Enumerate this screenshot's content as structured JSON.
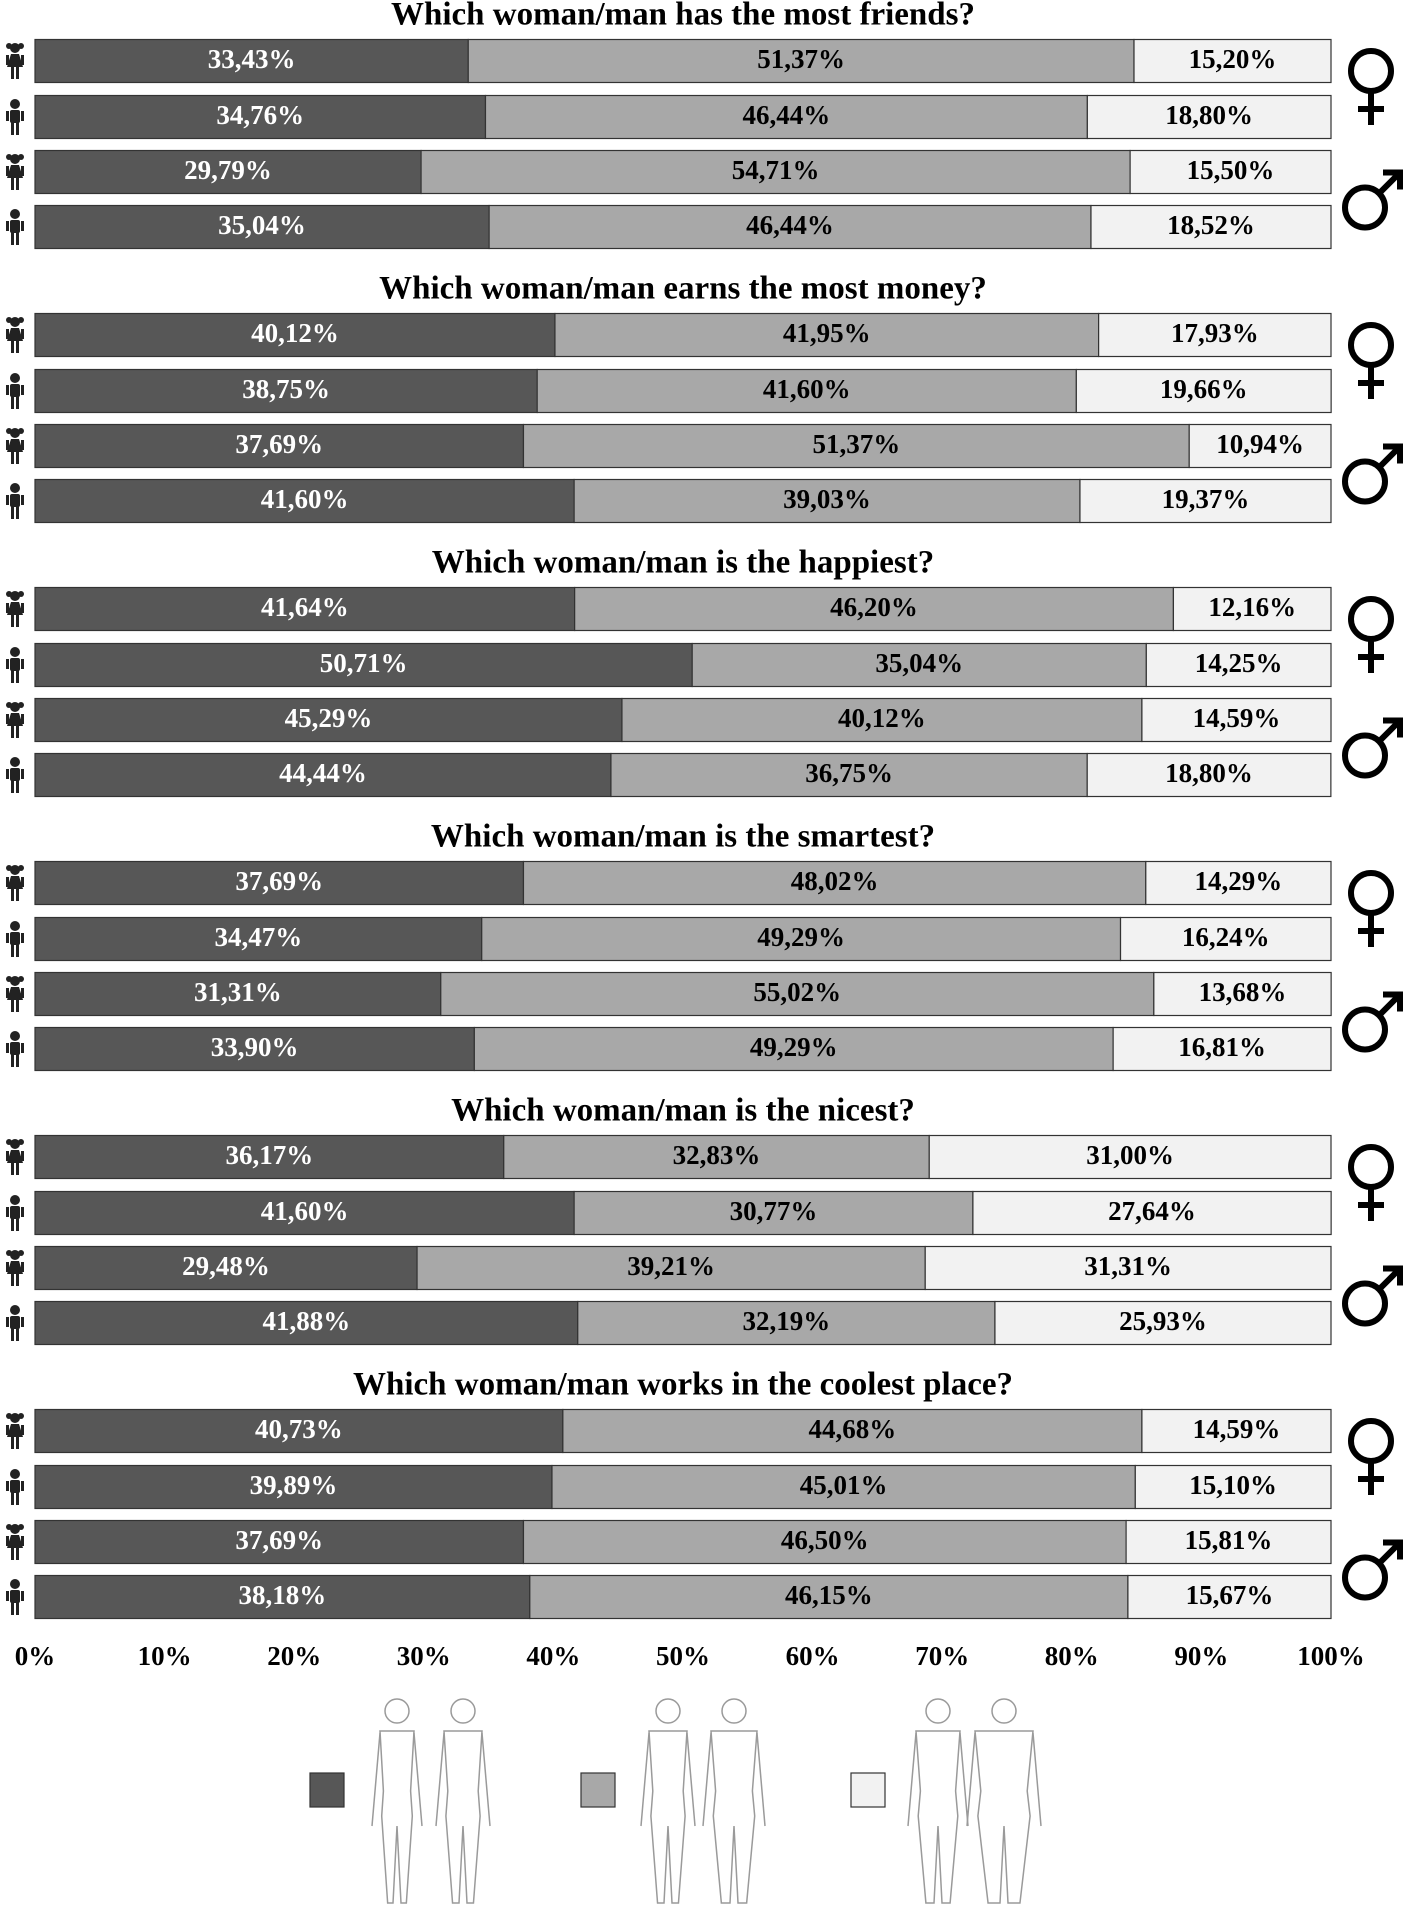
{
  "chart_data": {
    "type": "bar",
    "orientation": "horizontal",
    "stacked": true,
    "xlim": [
      0,
      100
    ],
    "xticks": [
      {
        "value": 0,
        "label": "0%"
      },
      {
        "value": 10,
        "label": "10%"
      },
      {
        "value": 20,
        "label": "20%"
      },
      {
        "value": 30,
        "label": "30%"
      },
      {
        "value": 40,
        "label": "40%"
      },
      {
        "value": 50,
        "label": "50%"
      },
      {
        "value": 60,
        "label": "60%"
      },
      {
        "value": 70,
        "label": "70%"
      },
      {
        "value": 80,
        "label": "80%"
      },
      {
        "value": 90,
        "label": "90%"
      },
      {
        "value": 100,
        "label": "100%"
      }
    ],
    "colors": [
      "#575757",
      "#a8a8a8",
      "#f2f2f2"
    ],
    "panels": [
      {
        "title": "Which woman/man has the most friends?",
        "categories": [
          null,
          null,
          null,
          null
        ],
        "series": [
          {
            "values": [
              33.43,
              34.76,
              29.79,
              35.04
            ],
            "value_labels": [
              "33,43%",
              "34,76%",
              "29,79%",
              "35,04%"
            ]
          },
          {
            "values": [
              51.37,
              46.44,
              54.71,
              46.44
            ],
            "value_labels": [
              "51,37%",
              "46,44%",
              "54,71%",
              "46,44%"
            ]
          },
          {
            "values": [
              15.2,
              18.8,
              15.5,
              18.52
            ],
            "value_labels": [
              "15,20%",
              "18,80%",
              "15,50%",
              "18,52%"
            ]
          }
        ]
      },
      {
        "title": "Which woman/man earns the most money?",
        "categories": [
          null,
          null,
          null,
          null
        ],
        "series": [
          {
            "values": [
              40.12,
              38.75,
              37.69,
              41.6
            ],
            "value_labels": [
              "40,12%",
              "38,75%",
              "37,69%",
              "41,60%"
            ]
          },
          {
            "values": [
              41.95,
              41.6,
              51.37,
              39.03
            ],
            "value_labels": [
              "41,95%",
              "41,60%",
              "51,37%",
              "39,03%"
            ]
          },
          {
            "values": [
              17.93,
              19.66,
              10.94,
              19.37
            ],
            "value_labels": [
              "17,93%",
              "19,66%",
              "10,94%",
              "19,37%"
            ]
          }
        ]
      },
      {
        "title": "Which woman/man is the happiest?",
        "categories": [
          null,
          null,
          null,
          null
        ],
        "series": [
          {
            "values": [
              41.64,
              50.71,
              45.29,
              44.44
            ],
            "value_labels": [
              "41,64%",
              "50,71%",
              "45,29%",
              "44,44%"
            ]
          },
          {
            "values": [
              46.2,
              35.04,
              40.12,
              36.75
            ],
            "value_labels": [
              "46,20%",
              "35,04%",
              "40,12%",
              "36,75%"
            ]
          },
          {
            "values": [
              12.16,
              14.25,
              14.59,
              18.8
            ],
            "value_labels": [
              "12,16%",
              "14,25%",
              "14,59%",
              "18,80%"
            ]
          }
        ]
      },
      {
        "title": "Which woman/man is the smartest?",
        "categories": [
          null,
          null,
          null,
          null
        ],
        "series": [
          {
            "values": [
              37.69,
              34.47,
              31.31,
              33.9
            ],
            "value_labels": [
              "37,69%",
              "34,47%",
              "31,31%",
              "33,90%"
            ]
          },
          {
            "values": [
              48.02,
              49.29,
              55.02,
              49.29
            ],
            "value_labels": [
              "48,02%",
              "49,29%",
              "55,02%",
              "49,29%"
            ]
          },
          {
            "values": [
              14.29,
              16.24,
              13.68,
              16.81
            ],
            "value_labels": [
              "14,29%",
              "16,24%",
              "13,68%",
              "16,81%"
            ]
          }
        ]
      },
      {
        "title": "Which woman/man is the nicest?",
        "categories": [
          null,
          null,
          null,
          null
        ],
        "series": [
          {
            "values": [
              36.17,
              41.6,
              29.48,
              41.88
            ],
            "value_labels": [
              "36,17%",
              "41,60%",
              "29,48%",
              "41,88%"
            ]
          },
          {
            "values": [
              32.83,
              30.77,
              39.21,
              32.19
            ],
            "value_labels": [
              "32,83%",
              "30,77%",
              "39,21%",
              "32,19%"
            ]
          },
          {
            "values": [
              31.0,
              27.64,
              31.31,
              25.93
            ],
            "value_labels": [
              "31,00%",
              "27,64%",
              "31,31%",
              "25,93%"
            ]
          }
        ]
      },
      {
        "title": "Which woman/man works in the coolest place?",
        "categories": [
          null,
          null,
          null,
          null
        ],
        "series": [
          {
            "values": [
              40.73,
              39.89,
              37.69,
              38.18
            ],
            "value_labels": [
              "40,73%",
              "39,89%",
              "37,69%",
              "38,18%"
            ]
          },
          {
            "values": [
              44.68,
              45.01,
              46.5,
              46.15
            ],
            "value_labels": [
              "44,68%",
              "45,01%",
              "46,50%",
              "46,15%"
            ]
          },
          {
            "values": [
              14.59,
              15.1,
              15.81,
              15.67
            ],
            "value_labels": [
              "14,59%",
              "15,10%",
              "15,81%",
              "15,67%"
            ]
          }
        ]
      }
    ]
  }
}
